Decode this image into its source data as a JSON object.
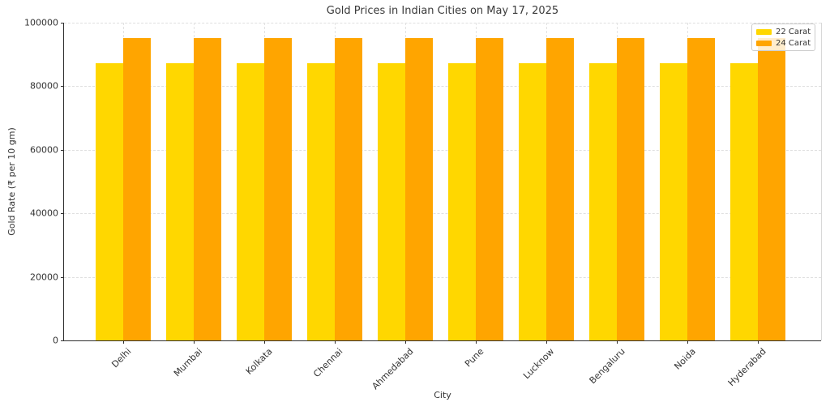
{
  "chart_data": {
    "type": "bar",
    "title": "Gold Prices in Indian Cities on May 17, 2025",
    "xlabel": "City",
    "ylabel": "Gold Rate (₹ per 10 gm)",
    "categories": [
      "Delhi",
      "Mumbai",
      "Kolkata",
      "Chennai",
      "Ahmedabad",
      "Pune",
      "Lucknow",
      "Bengaluru",
      "Noida",
      "Hyderabad"
    ],
    "series": [
      {
        "name": "22 Carat",
        "color": "#FFD700",
        "values": [
          87300,
          87300,
          87300,
          87300,
          87300,
          87300,
          87300,
          87300,
          87300,
          87300
        ]
      },
      {
        "name": "24 Carat",
        "color": "#FFA500",
        "values": [
          95240,
          95240,
          95240,
          95240,
          95240,
          95240,
          95240,
          95240,
          95240,
          95240
        ]
      }
    ],
    "ylim": [
      0,
      100000
    ],
    "yticks": [
      0,
      20000,
      40000,
      60000,
      80000,
      100000
    ],
    "grid": true,
    "grid_style": "dashed",
    "legend_position": "upper right"
  }
}
